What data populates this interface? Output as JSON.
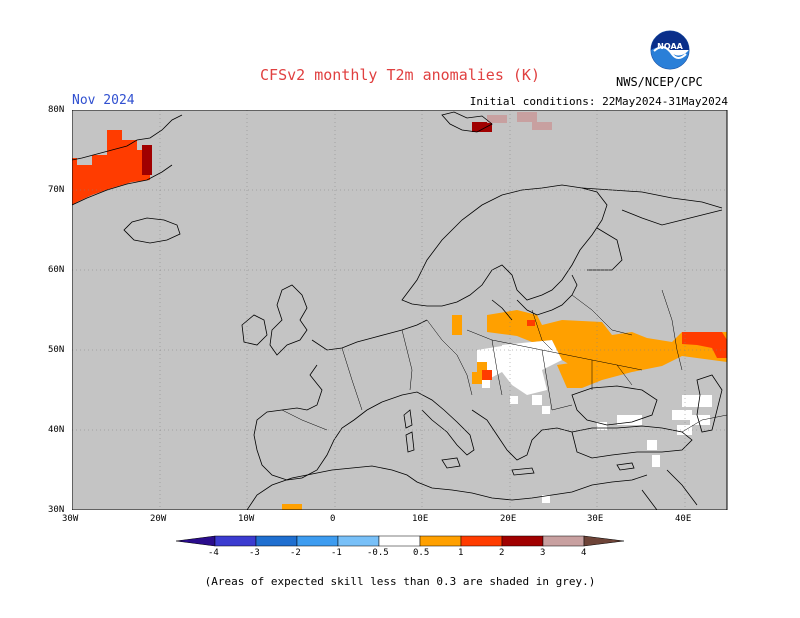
{
  "header": {
    "title": "CFSv2 monthly T2m anomalies (K)",
    "month": "Nov 2024",
    "initial_conditions": "Initial conditions: 22May2024-31May2024",
    "agency": "NWS/NCEP/CPC",
    "logo_text": "NOAA"
  },
  "axes": {
    "lat_labels": [
      "80N",
      "70N",
      "60N",
      "50N",
      "40N",
      "30N"
    ],
    "lon_labels": [
      "30W",
      "20W",
      "10W",
      "0",
      "10E",
      "20E",
      "30E",
      "40E"
    ]
  },
  "colorbar": {
    "labels": [
      "-4",
      "-3",
      "-2",
      "-1",
      "-0.5",
      "0.5",
      "1",
      "2",
      "3",
      "4"
    ],
    "colors": [
      "#2a0c8c",
      "#3b3bd0",
      "#1f6fd0",
      "#3d9cf0",
      "#78c0f8",
      "#ffffff",
      "#ffa000",
      "#ff3c00",
      "#a00000",
      "#c8a0a0",
      "#6e4438"
    ]
  },
  "footnote": "(Areas of expected skill less than 0.3 are shaded in grey.)",
  "colors": {
    "grey": "#c4c4c4",
    "orange": "#ffa000",
    "red_orange": "#ff3c00",
    "dark_red": "#a00000",
    "pink_brown": "#c8a0a0"
  }
}
